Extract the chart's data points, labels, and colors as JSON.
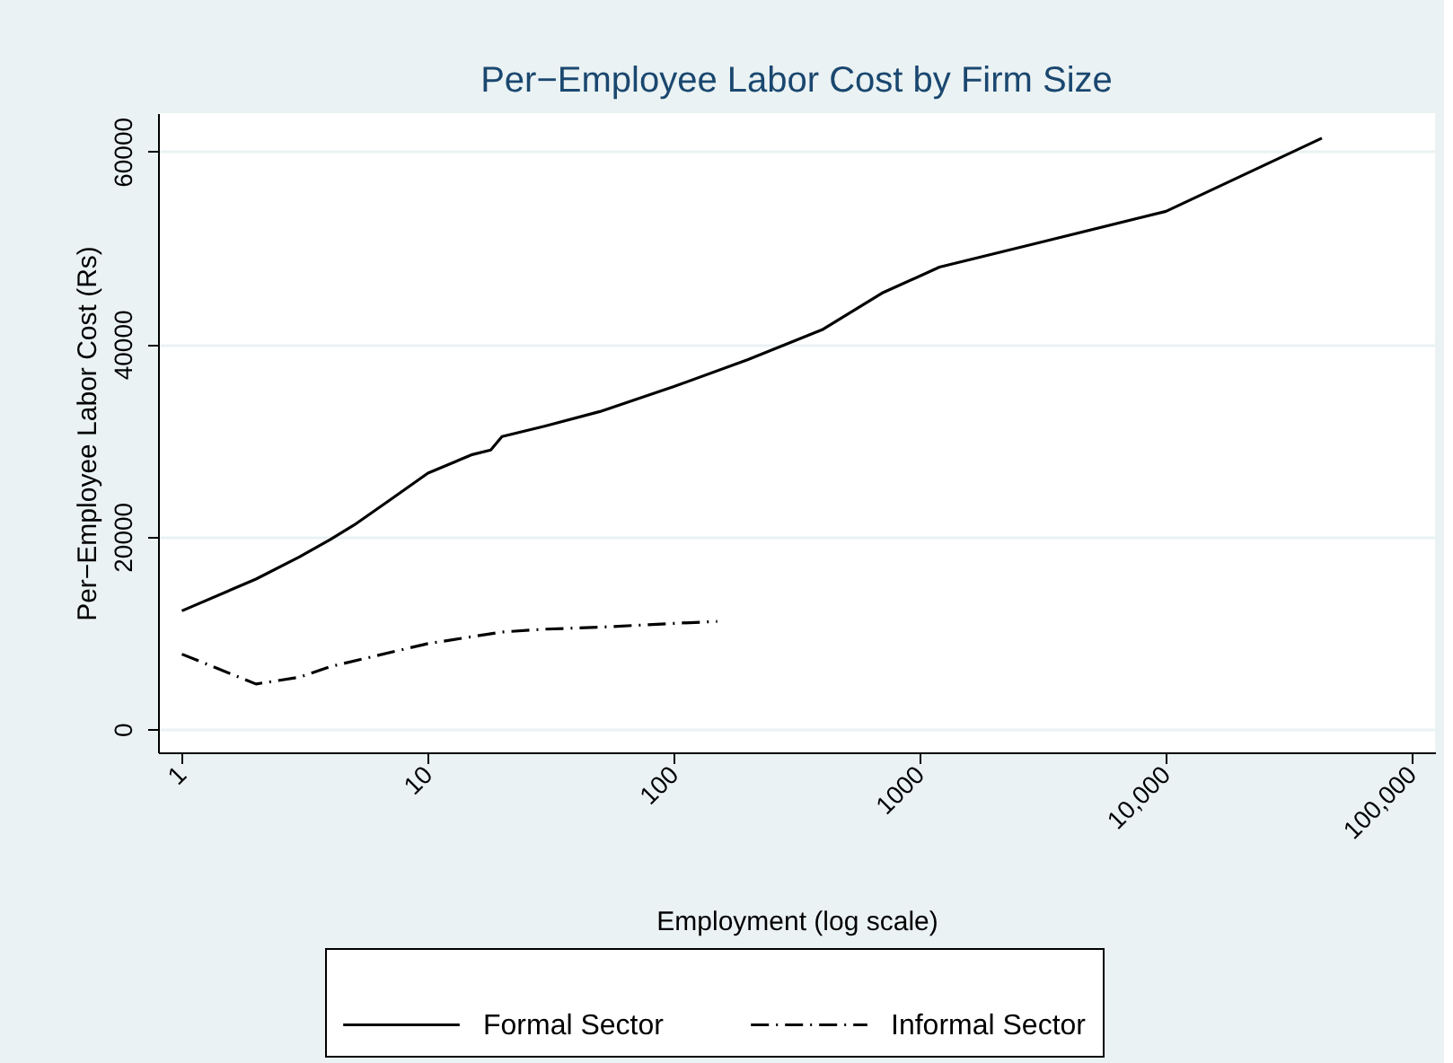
{
  "chart_data": {
    "type": "line",
    "title": "Per−Employee Labor Cost by Firm Size",
    "xlabel": "Employment (log scale)",
    "ylabel": "Per−Employee Labor Cost (Rs)",
    "log": "x",
    "xlim": [
      0.8,
      124000
    ],
    "ylim": [
      -2400,
      64000
    ],
    "xticks": [
      1,
      10,
      100,
      1000,
      {
        "value": 10000,
        "label": "10,000"
      },
      {
        "value": 100000,
        "label": "100,000"
      }
    ],
    "yticks": [
      0,
      20000,
      40000,
      60000
    ],
    "grid": "y",
    "legend": "bottom",
    "series": [
      {
        "name": "Formal Sector",
        "color": "#000000",
        "line_style": "solid",
        "x": [
          1,
          2,
          3,
          4,
          5,
          7,
          10,
          15,
          18,
          20,
          30,
          50,
          100,
          200,
          400,
          700,
          1200,
          3000,
          10000,
          43000
        ],
        "values": [
          12300,
          15600,
          17900,
          19700,
          21200,
          23800,
          26600,
          28500,
          29000,
          30400,
          31500,
          33000,
          35600,
          38400,
          41500,
          45300,
          48000,
          50500,
          53800,
          61400
        ]
      },
      {
        "name": "Informal Sector",
        "color": "#000000",
        "line_style": "dashed",
        "x": [
          1,
          2,
          3,
          4,
          10,
          20,
          30,
          50,
          100,
          150
        ],
        "values": [
          7800,
          4700,
          5400,
          6500,
          8900,
          10100,
          10400,
          10600,
          11000,
          11200
        ]
      }
    ]
  }
}
